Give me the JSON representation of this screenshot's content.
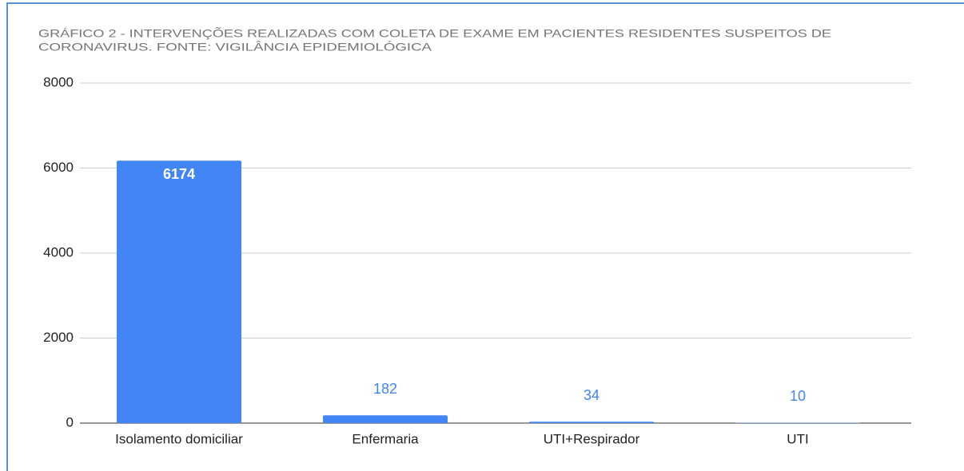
{
  "chart_data": {
    "type": "bar",
    "title": [
      "GRÁFICO 2 - INTERVENÇÕES REALIZADAS COM COLETA DE EXAME EM PACIENTES RESIDENTES SUSPEITOS DE",
      "CORONAVIRUS. FONTE: VIGILÂNCIA EPIDEMIOLÓGICA"
    ],
    "categories": [
      "Isolamento domiciliar",
      "Enfermaria",
      "UTI+Respirador",
      "UTI"
    ],
    "values": [
      6174,
      182,
      34,
      10
    ],
    "color": "#4285f4",
    "ylim": [
      0,
      8000
    ],
    "yticks": [
      0,
      2000,
      4000,
      6000,
      8000
    ],
    "grid": true
  }
}
